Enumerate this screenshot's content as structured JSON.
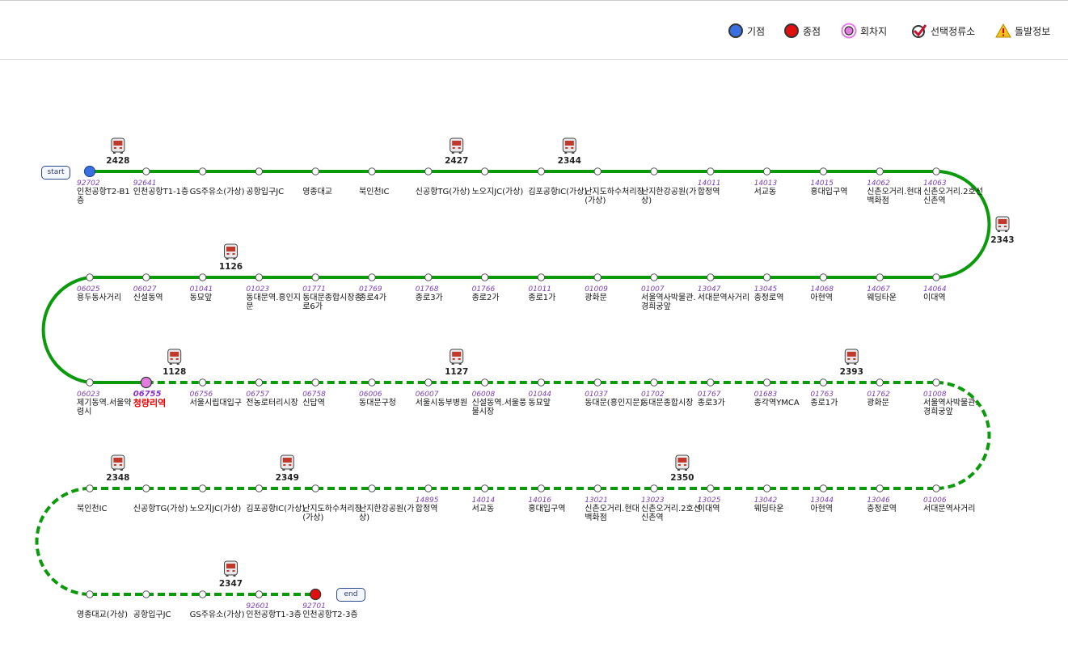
{
  "legend": [
    {
      "icon": "start-point-icon",
      "label": "기점"
    },
    {
      "icon": "end-point-icon",
      "label": "종점"
    },
    {
      "icon": "turnaround-icon",
      "label": "회차지"
    },
    {
      "icon": "selected-stop-icon",
      "label": "선택정류소"
    },
    {
      "icon": "alert-icon",
      "label": "돌발정보"
    }
  ],
  "start_label": "start",
  "end_label": "end",
  "colors": {
    "route": "#0a9a0a",
    "start": "#3a6fe0",
    "end": "#e01010",
    "turn": "#e37be3",
    "stn_no": "#7a3fb0",
    "selected": "#e00000"
  },
  "rows": [
    {
      "stations": [
        {
          "no": "92702",
          "name": "인천공항T2-B1층",
          "type": "start"
        },
        {
          "no": "92641",
          "name": "인천공항T1-1층"
        },
        {
          "no": "",
          "name": "GS주유소(가상)"
        },
        {
          "no": "",
          "name": "공항입구JC"
        },
        {
          "no": "",
          "name": "영종대교"
        },
        {
          "no": "",
          "name": "북인천IC"
        },
        {
          "no": "",
          "name": "신공항TG(가상)"
        },
        {
          "no": "",
          "name": "노오지JC(가상)"
        },
        {
          "no": "",
          "name": "김포공항IC(가상)"
        },
        {
          "no": "",
          "name": "난지도하수처리장(가상)"
        },
        {
          "no": "",
          "name": "난지한강공원(가상)"
        },
        {
          "no": "14011",
          "name": "합정역"
        },
        {
          "no": "14013",
          "name": "서교동"
        },
        {
          "no": "14015",
          "name": "홍대입구역"
        },
        {
          "no": "14062",
          "name": "신촌오거리.현대백화점"
        },
        {
          "no": "14063",
          "name": "신촌오거리.2호선신촌역"
        }
      ]
    },
    {
      "stations": [
        {
          "no": "06025",
          "name": "용두동사거리"
        },
        {
          "no": "06027",
          "name": "신설동역"
        },
        {
          "no": "01041",
          "name": "동묘앞"
        },
        {
          "no": "01023",
          "name": "동대문역.흥인지문"
        },
        {
          "no": "01771",
          "name": "동대문종합시장종로6가"
        },
        {
          "no": "01769",
          "name": "종로4가"
        },
        {
          "no": "01768",
          "name": "종로3가"
        },
        {
          "no": "01766",
          "name": "종로2가"
        },
        {
          "no": "01011",
          "name": "종로1가"
        },
        {
          "no": "01009",
          "name": "광화문"
        },
        {
          "no": "01007",
          "name": "서울역사박물관.경희궁앞"
        },
        {
          "no": "13047",
          "name": "서대문역사거리"
        },
        {
          "no": "13045",
          "name": "충정로역"
        },
        {
          "no": "14068",
          "name": "아현역"
        },
        {
          "no": "14067",
          "name": "웨딩타운"
        },
        {
          "no": "14064",
          "name": "이대역"
        }
      ]
    },
    {
      "stations": [
        {
          "no": "06023",
          "name": "제기동역.서울약령시"
        },
        {
          "no": "06755",
          "name": "청량리역",
          "type": "turn"
        },
        {
          "no": "06756",
          "name": "서울시립대입구"
        },
        {
          "no": "06757",
          "name": "전농로터리시장"
        },
        {
          "no": "06758",
          "name": "신답역"
        },
        {
          "no": "06006",
          "name": "동대문구청"
        },
        {
          "no": "06007",
          "name": "서울시동부병원"
        },
        {
          "no": "06008",
          "name": "신설동역.서울풍물시장"
        },
        {
          "no": "01044",
          "name": "동묘앞"
        },
        {
          "no": "01037",
          "name": "동대문(흥인지문)"
        },
        {
          "no": "01702",
          "name": "동대문종합시장"
        },
        {
          "no": "01767",
          "name": "종로3가"
        },
        {
          "no": "01683",
          "name": "종각역YMCA"
        },
        {
          "no": "01763",
          "name": "종로1가"
        },
        {
          "no": "01762",
          "name": "광화문"
        },
        {
          "no": "01008",
          "name": "서울역사박물관.경희궁앞"
        }
      ]
    },
    {
      "stations": [
        {
          "no": "",
          "name": "북인천IC"
        },
        {
          "no": "",
          "name": "신공항TG(가상)"
        },
        {
          "no": "",
          "name": "노오지JC(가상)"
        },
        {
          "no": "",
          "name": "김포공항IC(가상)"
        },
        {
          "no": "",
          "name": "난지도하수처리장(가상)"
        },
        {
          "no": "",
          "name": "난지한강공원(가상)"
        },
        {
          "no": "14895",
          "name": "합정역"
        },
        {
          "no": "14014",
          "name": "서교동"
        },
        {
          "no": "14016",
          "name": "홍대입구역"
        },
        {
          "no": "13021",
          "name": "신촌오거리.현대백화점"
        },
        {
          "no": "13023",
          "name": "신촌오거리.2호선신촌역"
        },
        {
          "no": "13025",
          "name": "이대역"
        },
        {
          "no": "13042",
          "name": "웨딩타운"
        },
        {
          "no": "13044",
          "name": "아현역"
        },
        {
          "no": "13046",
          "name": "충정로역"
        },
        {
          "no": "01006",
          "name": "서대문역사거리"
        }
      ]
    },
    {
      "stations": [
        {
          "no": "",
          "name": "영종대교(가상)"
        },
        {
          "no": "",
          "name": "공항입구JC"
        },
        {
          "no": "",
          "name": "GS주유소(가상)"
        },
        {
          "no": "92601",
          "name": "인천공항T1-3층"
        },
        {
          "no": "92701",
          "name": "인천공항T2-3층",
          "type": "end"
        }
      ]
    }
  ],
  "buses": [
    {
      "no": "2428",
      "row": 0,
      "slot": 0.5
    },
    {
      "no": "2427",
      "row": 0,
      "slot": 6.5
    },
    {
      "no": "2344",
      "row": 0,
      "slot": 8.5
    },
    {
      "no": "2343",
      "row": "curve1",
      "slot": 0
    },
    {
      "no": "1126",
      "row": 1,
      "slot": 2.5
    },
    {
      "no": "1128",
      "row": 2,
      "slot": 1.5
    },
    {
      "no": "1127",
      "row": 2,
      "slot": 6.5
    },
    {
      "no": "2393",
      "row": 2,
      "slot": 13.5
    },
    {
      "no": "2348",
      "row": 3,
      "slot": 0.5
    },
    {
      "no": "2349",
      "row": 3,
      "slot": 3.5
    },
    {
      "no": "2350",
      "row": 3,
      "slot": 10.5
    },
    {
      "no": "2347",
      "row": 4,
      "slot": 2.5
    }
  ]
}
